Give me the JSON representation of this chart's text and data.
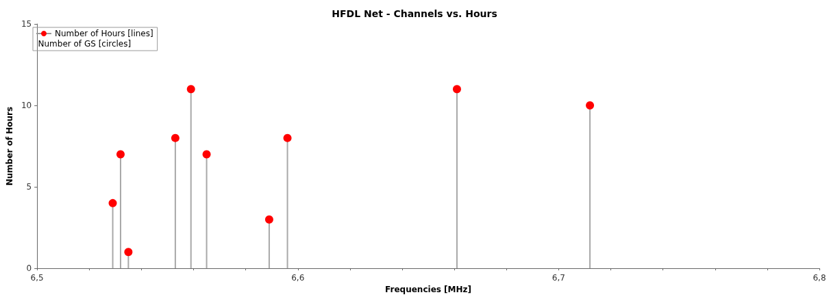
{
  "chart_data": {
    "type": "lollipop",
    "title": "HFDL Net - Channels vs. Hours",
    "xlabel": "Frequencies [MHz]",
    "ylabel": "Number of Hours",
    "x": [
      6.529,
      6.532,
      6.535,
      6.553,
      6.559,
      6.565,
      6.589,
      6.596,
      6.661,
      6.712
    ],
    "series": [
      {
        "name": "Number of Hours [lines]",
        "color": "#ff0000",
        "values": [
          4,
          7,
          1,
          8,
          11,
          7,
          3,
          8,
          11,
          10
        ]
      }
    ],
    "xlim": [
      6.5,
      6.8
    ],
    "xticks": [
      {
        "value": 6.5,
        "label": "6,5"
      },
      {
        "value": 6.52,
        "label": null
      },
      {
        "value": 6.54,
        "label": null
      },
      {
        "value": 6.56,
        "label": null
      },
      {
        "value": 6.58,
        "label": null
      },
      {
        "value": 6.6,
        "label": "6,6"
      },
      {
        "value": 6.62,
        "label": null
      },
      {
        "value": 6.64,
        "label": null
      },
      {
        "value": 6.66,
        "label": null
      },
      {
        "value": 6.68,
        "label": null
      },
      {
        "value": 6.7,
        "label": "6,7"
      },
      {
        "value": 6.72,
        "label": null
      },
      {
        "value": 6.74,
        "label": null
      },
      {
        "value": 6.76,
        "label": null
      },
      {
        "value": 6.78,
        "label": null
      },
      {
        "value": 6.8,
        "label": "6,8"
      }
    ],
    "ylim": [
      0,
      15
    ],
    "yticks": [
      0,
      5,
      10,
      15
    ],
    "marker": "circle",
    "grid": false,
    "legend": "top left",
    "annotations": [
      "Number of GS [circles]"
    ]
  }
}
